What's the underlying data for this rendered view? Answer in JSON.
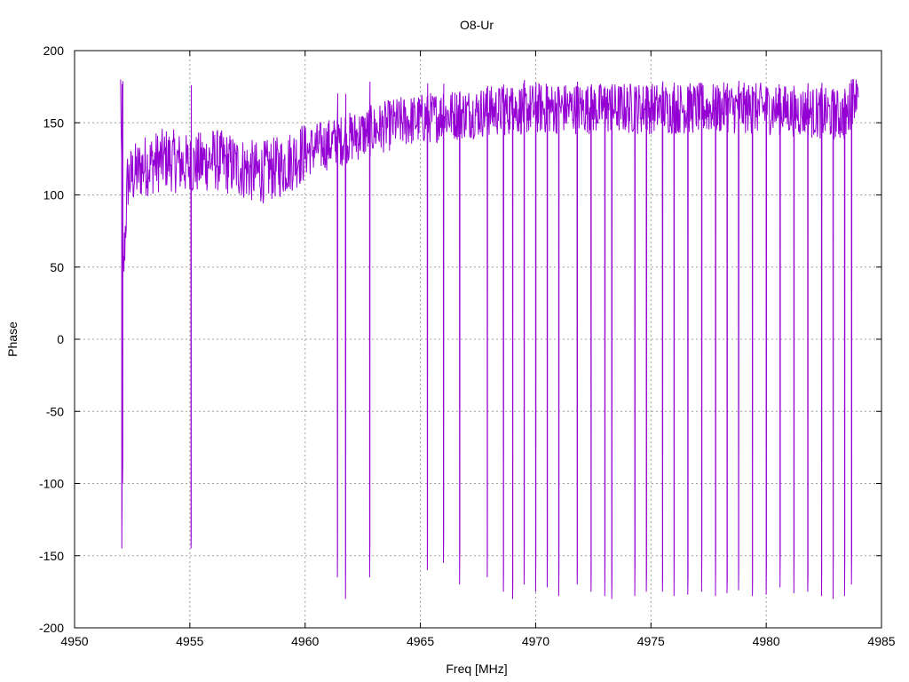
{
  "chart_data": {
    "type": "line",
    "title": "O8-Ur",
    "xlabel": "Freq [MHz]",
    "ylabel": "Phase",
    "xlim": [
      4950,
      4985
    ],
    "ylim": [
      -200,
      200
    ],
    "xticks": [
      4950,
      4955,
      4960,
      4965,
      4970,
      4975,
      4980,
      4985
    ],
    "yticks": [
      -200,
      -150,
      -100,
      -50,
      0,
      50,
      100,
      150,
      200
    ],
    "grid": true,
    "legend": "none",
    "series": [
      {
        "color": "#9400d3",
        "x_range": [
          4952.0,
          4984.0
        ],
        "wraps": [
          {
            "x": 4952.05,
            "y": -145
          },
          {
            "x": 4952.08,
            "y": -100
          },
          {
            "x": 4955.05,
            "y": -145
          },
          {
            "x": 4961.4,
            "y": -165
          },
          {
            "x": 4961.75,
            "y": -180
          },
          {
            "x": 4962.8,
            "y": -165
          },
          {
            "x": 4965.3,
            "y": -160
          },
          {
            "x": 4966.0,
            "y": -155
          },
          {
            "x": 4966.7,
            "y": -170
          },
          {
            "x": 4967.9,
            "y": -165
          },
          {
            "x": 4968.6,
            "y": -175
          },
          {
            "x": 4969.0,
            "y": -180
          },
          {
            "x": 4969.5,
            "y": -170
          },
          {
            "x": 4970.0,
            "y": -175
          },
          {
            "x": 4970.5,
            "y": -172
          },
          {
            "x": 4971.0,
            "y": -178
          },
          {
            "x": 4971.8,
            "y": -170
          },
          {
            "x": 4972.4,
            "y": -175
          },
          {
            "x": 4973.0,
            "y": -178
          },
          {
            "x": 4973.3,
            "y": -180
          },
          {
            "x": 4974.3,
            "y": -178
          },
          {
            "x": 4974.8,
            "y": -175
          },
          {
            "x": 4975.5,
            "y": -175
          },
          {
            "x": 4976.0,
            "y": -178
          },
          {
            "x": 4976.6,
            "y": -177
          },
          {
            "x": 4977.2,
            "y": -175
          },
          {
            "x": 4977.8,
            "y": -178
          },
          {
            "x": 4978.3,
            "y": -176
          },
          {
            "x": 4978.8,
            "y": -174
          },
          {
            "x": 4979.4,
            "y": -178
          },
          {
            "x": 4980.0,
            "y": -177
          },
          {
            "x": 4980.6,
            "y": -172
          },
          {
            "x": 4981.2,
            "y": -176
          },
          {
            "x": 4981.8,
            "y": -175
          },
          {
            "x": 4982.4,
            "y": -178
          },
          {
            "x": 4982.9,
            "y": -180
          },
          {
            "x": 4983.4,
            "y": -178
          },
          {
            "x": 4983.7,
            "y": -170
          }
        ],
        "trend": [
          {
            "x": 4952.0,
            "y": 180
          },
          {
            "x": 4952.1,
            "y": 40
          },
          {
            "x": 4952.3,
            "y": 110
          },
          {
            "x": 4953.0,
            "y": 120
          },
          {
            "x": 4954.0,
            "y": 125
          },
          {
            "x": 4955.0,
            "y": 120
          },
          {
            "x": 4956.0,
            "y": 125
          },
          {
            "x": 4957.0,
            "y": 120
          },
          {
            "x": 4958.0,
            "y": 115
          },
          {
            "x": 4959.0,
            "y": 120
          },
          {
            "x": 4960.0,
            "y": 130
          },
          {
            "x": 4962.0,
            "y": 140
          },
          {
            "x": 4964.0,
            "y": 150
          },
          {
            "x": 4966.0,
            "y": 155
          },
          {
            "x": 4968.0,
            "y": 158
          },
          {
            "x": 4970.0,
            "y": 160
          },
          {
            "x": 4975.0,
            "y": 160
          },
          {
            "x": 4980.0,
            "y": 160
          },
          {
            "x": 4983.5,
            "y": 155
          },
          {
            "x": 4984.0,
            "y": 180
          }
        ]
      }
    ]
  }
}
